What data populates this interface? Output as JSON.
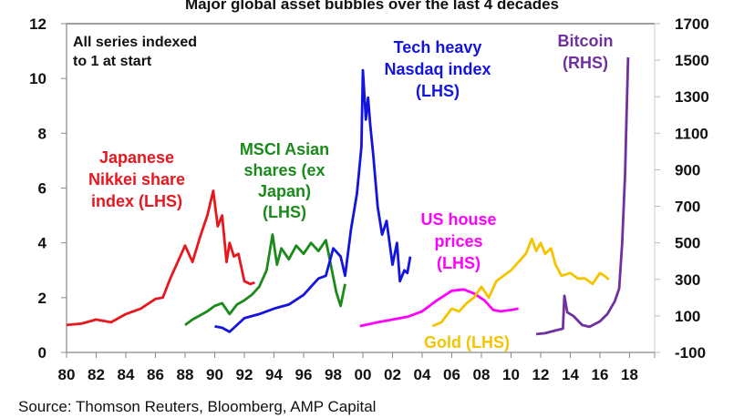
{
  "chart_data": {
    "type": "line",
    "title": "Major global asset bubbles over the last 4 decades",
    "note": [
      "All series indexed",
      "to 1 at start"
    ],
    "source": "Source: Thomson Reuters, Bloomberg, AMP Capital",
    "xlim": [
      1980,
      2019.8
    ],
    "ylim_left": [
      0,
      12
    ],
    "ylim_right": [
      -100,
      1700
    ],
    "x_tick_labels": [
      "80",
      "82",
      "84",
      "86",
      "88",
      "90",
      "92",
      "94",
      "96",
      "98",
      "00",
      "02",
      "04",
      "06",
      "08",
      "10",
      "12",
      "14",
      "16",
      "18"
    ],
    "x_tick_years": [
      1980,
      1982,
      1984,
      1986,
      1988,
      1990,
      1992,
      1994,
      1996,
      1998,
      2000,
      2002,
      2004,
      2006,
      2008,
      2010,
      2012,
      2014,
      2016,
      2018
    ],
    "y_left_ticks": [
      "0",
      "2",
      "4",
      "6",
      "8",
      "10",
      "12"
    ],
    "y_right_ticks": [
      "-100",
      "100",
      "300",
      "500",
      "700",
      "900",
      "1100",
      "1300",
      "1500",
      "1700"
    ],
    "grid": false,
    "series": [
      {
        "name": "Japanese Nikkei share index (LHS)",
        "label": [
          "Japanese",
          "Nikkei share",
          "index (LHS)"
        ],
        "axis": "left",
        "color": "#e8171f",
        "x": [
          1980,
          1981,
          1982,
          1982.5,
          1983,
          1983.5,
          1984,
          1985,
          1986,
          1986.5,
          1987,
          1987.5,
          1988,
          1988.5,
          1989,
          1989.5,
          1989.9,
          1990.2,
          1990.5,
          1990.8,
          1991,
          1991.3,
          1991.6,
          1992,
          1992.4,
          1992.7
        ],
        "y": [
          1.0,
          1.05,
          1.2,
          1.15,
          1.1,
          1.25,
          1.4,
          1.6,
          1.95,
          2.0,
          2.7,
          3.3,
          3.9,
          3.3,
          4.2,
          5.0,
          5.9,
          4.6,
          5.0,
          3.3,
          4.0,
          3.5,
          3.6,
          2.6,
          2.5,
          2.55
        ]
      },
      {
        "name": "MSCI Asian shares (ex Japan) (LHS)",
        "label": [
          "MSCI Asian",
          "shares (ex",
          "Japan)",
          "(LHS)"
        ],
        "axis": "left",
        "color": "#1a8a1a",
        "x": [
          1988,
          1988.5,
          1989,
          1989.5,
          1990,
          1990.5,
          1991,
          1991.5,
          1992,
          1992.5,
          1993,
          1993.5,
          1993.9,
          1994.2,
          1994.5,
          1995,
          1995.5,
          1996,
          1996.5,
          1997,
          1997.5,
          1997.8,
          1998.2,
          1998.5,
          1998.8
        ],
        "y": [
          1.0,
          1.2,
          1.35,
          1.5,
          1.7,
          1.8,
          1.4,
          1.75,
          1.9,
          2.1,
          2.4,
          3.0,
          4.3,
          3.2,
          3.8,
          3.4,
          3.9,
          3.6,
          4.0,
          3.7,
          4.1,
          3.3,
          2.2,
          1.7,
          2.5
        ]
      },
      {
        "name": "Tech heavy Nasdaq index (LHS)",
        "label": [
          "Tech heavy",
          "Nasdaq index",
          "(LHS)"
        ],
        "axis": "left",
        "color": "#1414e0",
        "x": [
          1990,
          1990.5,
          1991,
          1991.5,
          1992,
          1993,
          1994,
          1995,
          1996,
          1996.5,
          1997,
          1997.5,
          1998,
          1998.5,
          1998.8,
          1999.2,
          1999.6,
          1999.9,
          2000.0,
          2000.2,
          2000.35,
          2000.5,
          2000.7,
          2001,
          2001.3,
          2001.6,
          2002,
          2002.3,
          2002.5,
          2002.8,
          2003,
          2003.2
        ],
        "y": [
          0.95,
          0.9,
          0.75,
          1.0,
          1.25,
          1.4,
          1.6,
          1.75,
          2.1,
          2.4,
          2.7,
          2.8,
          3.8,
          3.5,
          2.8,
          4.5,
          5.8,
          7.5,
          10.3,
          8.5,
          9.3,
          8.3,
          7.2,
          5.3,
          4.3,
          4.8,
          3.2,
          4.0,
          2.6,
          3.0,
          2.9,
          3.5
        ]
      },
      {
        "name": "US house prices (LHS)",
        "label": [
          "US house",
          "prices",
          "(LHS)"
        ],
        "axis": "left",
        "color": "#ff00ff",
        "x": [
          1999.8,
          2001,
          2002,
          2003,
          2004,
          2005,
          2006,
          2006.8,
          2007.5,
          2008.2,
          2008.8,
          2009.3,
          2010,
          2010.5
        ],
        "y": [
          0.96,
          1.1,
          1.2,
          1.3,
          1.5,
          1.9,
          2.25,
          2.3,
          2.15,
          1.9,
          1.55,
          1.5,
          1.55,
          1.6
        ]
      },
      {
        "name": "Gold (LHS)",
        "label": [
          "Gold (LHS)"
        ],
        "axis": "left",
        "color": "#f5c400",
        "x": [
          2004.7,
          2005.3,
          2006,
          2006.5,
          2007,
          2007.5,
          2008,
          2008.5,
          2009,
          2009.5,
          2010,
          2010.5,
          2011,
          2011.4,
          2011.7,
          2012,
          2012.3,
          2012.7,
          2013,
          2013.4,
          2014,
          2014.5,
          2015,
          2015.5,
          2016,
          2016.3,
          2016.6
        ],
        "y": [
          0.96,
          1.1,
          1.6,
          1.5,
          1.8,
          2.0,
          2.4,
          2.0,
          2.6,
          2.8,
          3.0,
          3.3,
          3.6,
          4.15,
          3.7,
          4.0,
          3.6,
          3.8,
          3.2,
          2.8,
          2.9,
          2.7,
          2.7,
          2.5,
          2.9,
          2.8,
          2.66
        ]
      },
      {
        "name": "Bitcoin (RHS)",
        "label": [
          "Bitcoin",
          "(RHS)"
        ],
        "axis": "right",
        "color": "#7030a0",
        "x": [
          2011.7,
          2012.3,
          2013,
          2013.5,
          2013.6,
          2013.8,
          2014.2,
          2014.8,
          2015.3,
          2016,
          2016.5,
          2017,
          2017.3,
          2017.5,
          2017.7,
          2017.8,
          2017.9
        ],
        "y": [
          0,
          5,
          20,
          30,
          210,
          120,
          100,
          50,
          40,
          70,
          110,
          180,
          250,
          500,
          880,
          1200,
          1516
        ]
      }
    ]
  }
}
